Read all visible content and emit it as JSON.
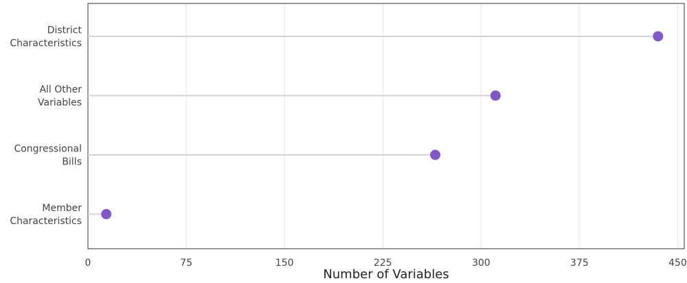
{
  "chart_data": {
    "type": "lollipop",
    "categories": [
      "District\nCharacteristics",
      "All Other\nVariables",
      "Congressional\nBills",
      "Member\nCharacteristics"
    ],
    "values": [
      435,
      311,
      265,
      14
    ],
    "color": "#8257c7",
    "stem_color": "#d4d4d4",
    "x_label": "Number of Variables",
    "xlim": [
      0,
      455
    ],
    "xticks": [
      0,
      75,
      150,
      225,
      300,
      375,
      450
    ],
    "grid": true
  }
}
